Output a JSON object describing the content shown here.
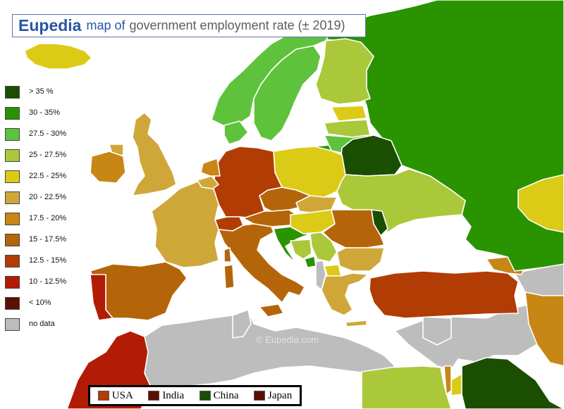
{
  "title": {
    "brand": "Eupedia",
    "map_of": "map of",
    "subject": "government employment rate (± 2019)"
  },
  "watermark": "© Eupedia.com",
  "legend": [
    {
      "label": "> 35 %",
      "color": "#1a4e00"
    },
    {
      "label": "30 - 35%",
      "color": "#2a9300"
    },
    {
      "label": "27.5 - 30%",
      "color": "#5fc23c"
    },
    {
      "label": "25 - 27.5%",
      "color": "#aac83a"
    },
    {
      "label": "22.5 - 25%",
      "color": "#dccb16"
    },
    {
      "label": "20 - 22.5%",
      "color": "#cfa739"
    },
    {
      "label": "17.5 - 20%",
      "color": "#c88614"
    },
    {
      "label": "15 - 17.5%",
      "color": "#b56509"
    },
    {
      "label": "12.5 - 15%",
      "color": "#b13c04"
    },
    {
      "label": "10 - 12.5%",
      "color": "#b21b05"
    },
    {
      "label": "< 10%",
      "color": "#5b1003"
    },
    {
      "label": "no data",
      "color": "#bdbdbd"
    }
  ],
  "comparison": [
    {
      "label": "USA",
      "color": "#b13c04"
    },
    {
      "label": "India",
      "color": "#5b1003"
    },
    {
      "label": "China",
      "color": "#1a4e00"
    },
    {
      "label": "Japan",
      "color": "#5b1003"
    }
  ],
  "colors": {
    "sea": "#ffffff",
    "no_data": "#bdbdbd",
    "title_accent": "#2a55a6",
    "border": "#ffffff"
  },
  "regions": [
    {
      "name": "Russia",
      "band": "30 - 35%"
    },
    {
      "name": "Belarus",
      "band": "> 35 %"
    },
    {
      "name": "Moldova",
      "band": "> 35 %"
    },
    {
      "name": "Norway",
      "band": "27.5 - 30%"
    },
    {
      "name": "Sweden",
      "band": "27.5 - 30%"
    },
    {
      "name": "Denmark",
      "band": "27.5 - 30%"
    },
    {
      "name": "Lithuania",
      "band": "27.5 - 30%"
    },
    {
      "name": "Finland",
      "band": "25 - 27.5%"
    },
    {
      "name": "Latvia",
      "band": "25 - 27.5%"
    },
    {
      "name": "Ukraine",
      "band": "25 - 27.5%"
    },
    {
      "name": "Egypt",
      "band": "25 - 27.5%"
    },
    {
      "name": "Serbia",
      "band": "25 - 27.5%"
    },
    {
      "name": "Iceland",
      "band": "22.5 - 25%"
    },
    {
      "name": "Estonia",
      "band": "22.5 - 25%"
    },
    {
      "name": "Poland",
      "band": "22.5 - 25%"
    },
    {
      "name": "Hungary",
      "band": "22.5 - 25%"
    },
    {
      "name": "Kazakhstan",
      "band": "22.5 - 25%"
    },
    {
      "name": "Jordan",
      "band": "22.5 - 25%"
    },
    {
      "name": "North Macedonia",
      "band": "22.5 - 25%"
    },
    {
      "name": "United Kingdom",
      "band": "20 - 22.5%"
    },
    {
      "name": "France",
      "band": "20 - 22.5%"
    },
    {
      "name": "Belgium",
      "band": "20 - 22.5%"
    },
    {
      "name": "Slovakia",
      "band": "20 - 22.5%"
    },
    {
      "name": "Bulgaria",
      "band": "20 - 22.5%"
    },
    {
      "name": "Greece",
      "band": "20 - 22.5%"
    },
    {
      "name": "Ireland",
      "band": "17.5 - 20%"
    },
    {
      "name": "Netherlands",
      "band": "17.5 - 20%"
    },
    {
      "name": "Iran",
      "band": "17.5 - 20%"
    },
    {
      "name": "Georgia",
      "band": "17.5 - 20%"
    },
    {
      "name": "Romania",
      "band": "15 - 17.5%"
    },
    {
      "name": "Spain",
      "band": "15 - 17.5%"
    },
    {
      "name": "Italy",
      "band": "15 - 17.5%"
    },
    {
      "name": "Czech Republic",
      "band": "15 - 17.5%"
    },
    {
      "name": "Austria",
      "band": "15 - 17.5%"
    },
    {
      "name": "Germany",
      "band": "12.5 - 15%"
    },
    {
      "name": "Switzerland",
      "band": "12.5 - 15%"
    },
    {
      "name": "Turkey",
      "band": "12.5 - 15%"
    },
    {
      "name": "Portugal",
      "band": "10 - 12.5%"
    },
    {
      "name": "Morocco",
      "band": "10 - 12.5%"
    },
    {
      "name": "Iraq",
      "band": "> 35 %"
    },
    {
      "name": "Croatia",
      "band": "30 - 35%"
    },
    {
      "name": "Bosnia",
      "band": "25 - 27.5%"
    },
    {
      "name": "Albania",
      "band": "no data"
    },
    {
      "name": "Algeria",
      "band": "no data"
    },
    {
      "name": "Libya",
      "band": "no data"
    },
    {
      "name": "Tunisia",
      "band": "no data"
    },
    {
      "name": "Syria",
      "band": "no data"
    }
  ]
}
